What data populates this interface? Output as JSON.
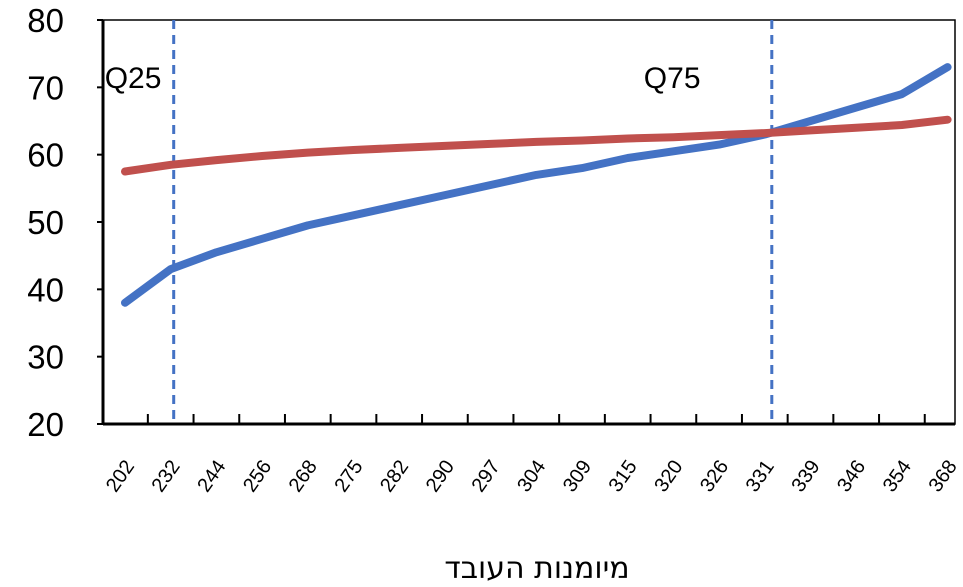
{
  "chart_data": {
    "type": "line",
    "title": "",
    "xlabel": "מיומנות העובד",
    "ylabel": "",
    "ylim": [
      20,
      80
    ],
    "yticks": [
      20,
      30,
      40,
      50,
      60,
      70,
      80
    ],
    "categories": [
      "202",
      "232",
      "244",
      "256",
      "268",
      "275",
      "282",
      "290",
      "297",
      "304",
      "309",
      "315",
      "320",
      "326",
      "331",
      "339",
      "346",
      "354",
      "368"
    ],
    "series": [
      {
        "color": "#4472c4",
        "values": [
          38,
          43,
          45.5,
          47.5,
          49.5,
          51,
          52.5,
          54,
          55.5,
          57,
          58,
          59.5,
          60.5,
          61.5,
          63,
          65,
          67,
          69,
          73
        ]
      },
      {
        "color": "#c0504d",
        "values": [
          57.5,
          58.5,
          59.2,
          59.8,
          60.3,
          60.7,
          61,
          61.3,
          61.6,
          61.9,
          62.1,
          62.4,
          62.6,
          62.9,
          63.2,
          63.6,
          64,
          64.4,
          65.2
        ]
      }
    ],
    "reference_lines": [
      {
        "label": "Q25",
        "at_category": "232",
        "color": "#4472c4"
      },
      {
        "label": "Q75",
        "at_category": "331",
        "color": "#4472c4"
      }
    ],
    "grid": false,
    "legend": "none"
  }
}
